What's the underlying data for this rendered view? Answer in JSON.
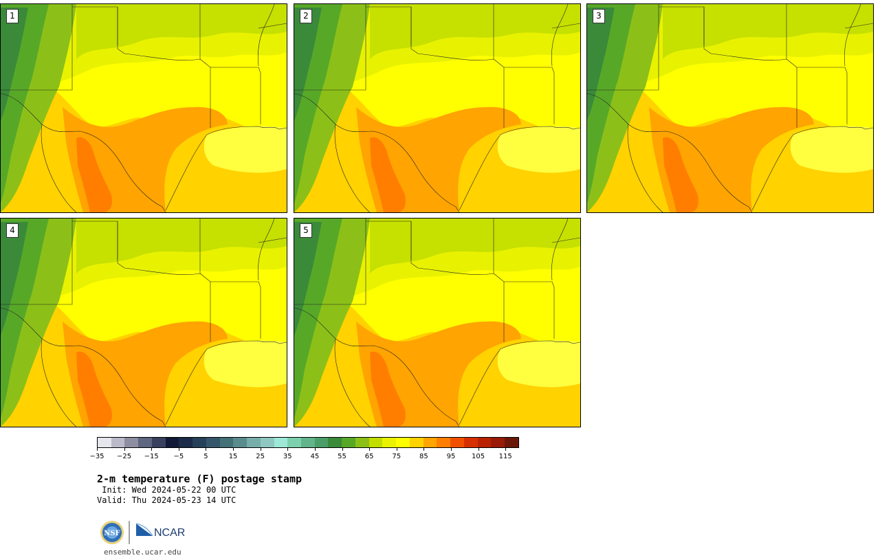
{
  "panels": [
    {
      "label": "1"
    },
    {
      "label": "2"
    },
    {
      "label": "3"
    },
    {
      "label": "4"
    },
    {
      "label": "5"
    }
  ],
  "colorbar": {
    "colors": [
      "#e6e6ee",
      "#babaca",
      "#8e8ea2",
      "#5e6680",
      "#38405e",
      "#101a36",
      "#1a2a48",
      "#26405a",
      "#34566a",
      "#447078",
      "#5a8c8e",
      "#78aeaa",
      "#8ec8c0",
      "#9ee8d8",
      "#7cd0ae",
      "#62b48a",
      "#4c9e68",
      "#3a8a3a",
      "#58a828",
      "#8cc018",
      "#c2de00",
      "#eaf200",
      "#ffff00",
      "#ffd200",
      "#ffa400",
      "#ff7e00",
      "#f05000",
      "#d63000",
      "#b82200",
      "#9a1a08",
      "#6a1608"
    ],
    "tick_labels": [
      "−35",
      "−25",
      "−15",
      "−5",
      "5",
      "15",
      "25",
      "35",
      "45",
      "55",
      "65",
      "75",
      "85",
      "95",
      "105",
      "115"
    ]
  },
  "title": "2-m temperature (F) postage stamp",
  "init": " Init: Wed 2024-05-22 00 UTC",
  "valid": "Valid: Thu 2024-05-23 14 UTC",
  "logos": {
    "nsf_text": "NSF",
    "ncar_text": "NCAR"
  },
  "website": "ensemble.ucar.edu"
}
